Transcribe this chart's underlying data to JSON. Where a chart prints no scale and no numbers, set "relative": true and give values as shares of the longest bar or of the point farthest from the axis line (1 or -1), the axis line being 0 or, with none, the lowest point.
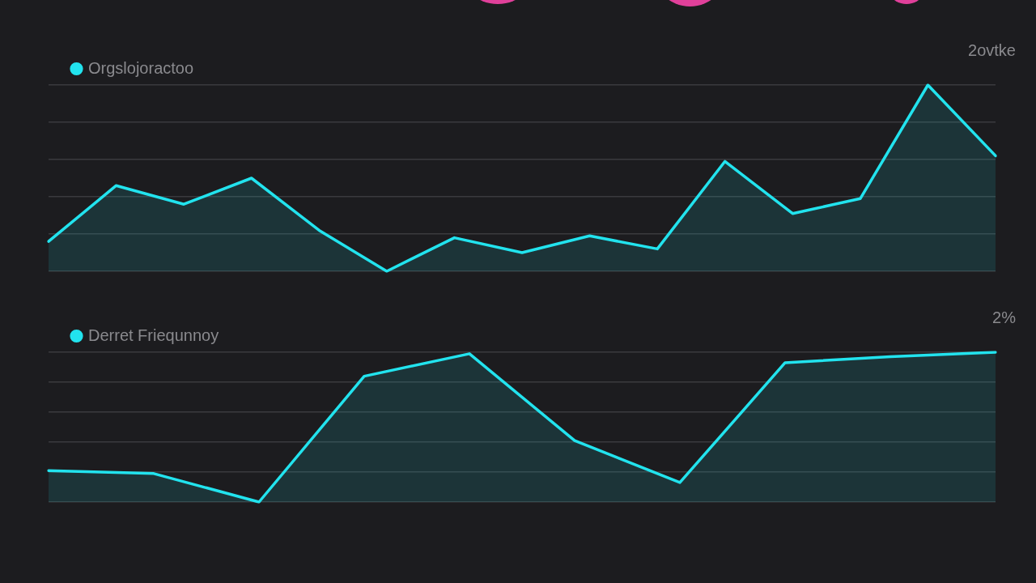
{
  "chart_data": [
    {
      "type": "area",
      "relative": true,
      "categories": [
        null,
        null,
        null,
        null,
        null,
        null,
        null,
        null,
        null,
        null,
        null,
        null,
        null,
        null,
        null
      ],
      "series": [
        {
          "name": "Orgslojoractoo",
          "color": "#22e3ee",
          "values": [
            0.16,
            0.46,
            0.36,
            0.5,
            0.22,
            0,
            0.18,
            0.1,
            0.19,
            0.12,
            0.59,
            0.31,
            0.39,
            1,
            0.62
          ]
        }
      ],
      "annotations": [
        "2ovtke"
      ],
      "grid": "y",
      "legend": "top left",
      "marker": "none",
      "line_style": "solid"
    },
    {
      "type": "area",
      "relative": true,
      "categories": [
        null,
        null,
        null,
        null,
        null,
        null,
        null,
        null,
        null,
        null
      ],
      "series": [
        {
          "name": "Derret Friequnnoy",
          "color": "#22e3ee",
          "values": [
            0.21,
            0.19,
            0,
            0.84,
            0.99,
            0.41,
            0.13,
            0.93,
            0.97,
            1
          ]
        }
      ],
      "annotations": [
        "2%"
      ],
      "grid": "y",
      "legend": "top left",
      "marker": "none",
      "line_style": "solid"
    }
  ]
}
